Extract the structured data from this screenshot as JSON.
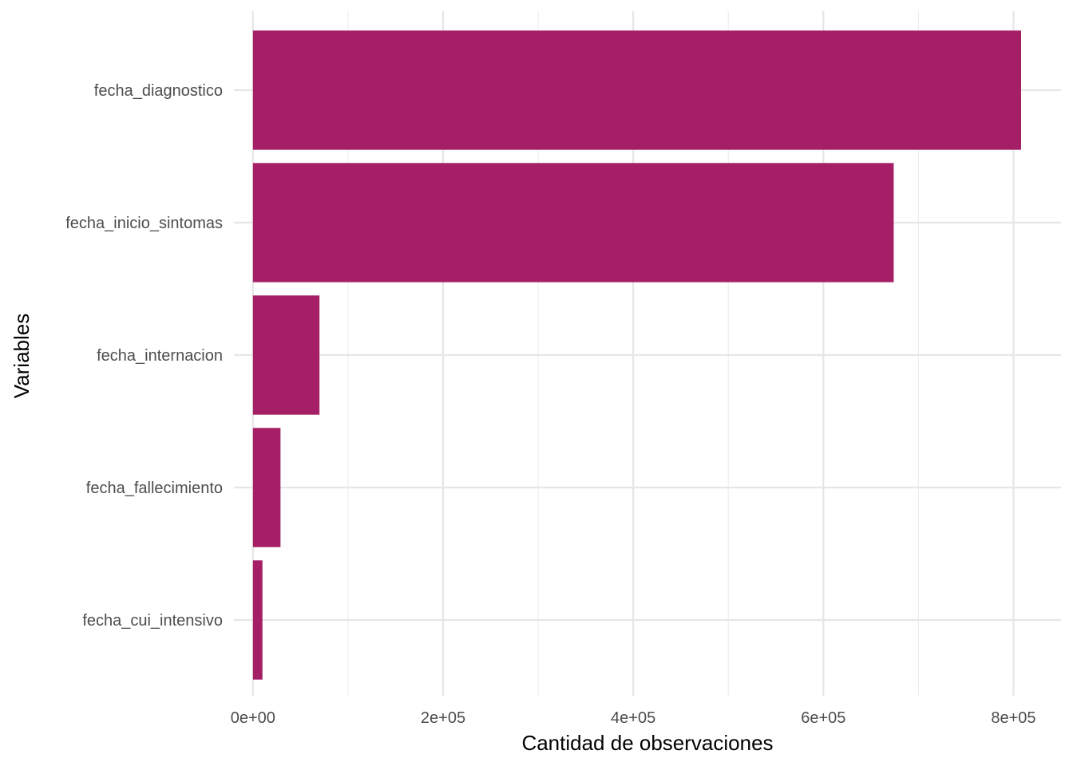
{
  "chart_data": {
    "type": "bar",
    "orientation": "horizontal",
    "categories": [
      "fecha_diagnostico",
      "fecha_inicio_sintomas",
      "fecha_internacion",
      "fecha_fallecimiento",
      "fecha_cui_intensivo"
    ],
    "values": [
      808000,
      674000,
      70000,
      29000,
      10000
    ],
    "xlabel": "Cantidad de observaciones",
    "ylabel": "Variables",
    "xlim": [
      -20000,
      850000
    ],
    "x_ticks": [
      0,
      200000,
      400000,
      600000,
      800000
    ],
    "x_tick_labels": [
      "0e+00",
      "2e+05",
      "4e+05",
      "6e+05",
      "8e+05"
    ],
    "grid": true,
    "legend": "none",
    "bar_color": "#A51F66"
  }
}
